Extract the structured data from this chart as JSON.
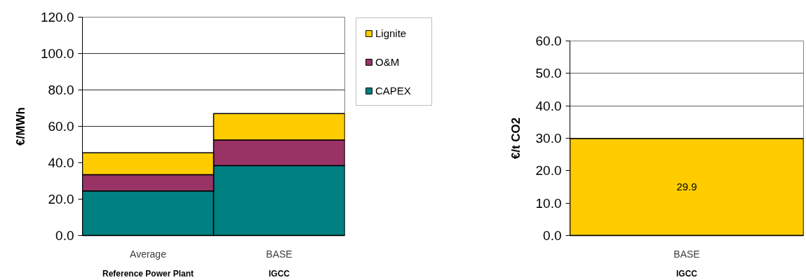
{
  "chart_data": [
    {
      "type": "bar",
      "stacked": true,
      "categories": [
        "Average",
        "BASE"
      ],
      "ylabel": "€/MWh",
      "ylim": [
        0,
        120
      ],
      "yticks": [
        {
          "value": 0,
          "label": "0.0"
        },
        {
          "value": 20,
          "label": "20.0"
        },
        {
          "value": 40,
          "label": "40.0"
        },
        {
          "value": 60,
          "label": "60.0"
        },
        {
          "value": 80,
          "label": "80.0"
        },
        {
          "value": 100,
          "label": "100.0"
        },
        {
          "value": 120,
          "label": "120.0"
        }
      ],
      "grid": "y",
      "legend": "top right",
      "series": [
        {
          "name": "CAPEX",
          "color": "#008080",
          "values": [
            24.5,
            38.5
          ]
        },
        {
          "name": "O&M",
          "color": "#993366",
          "values": [
            9,
            14
          ]
        },
        {
          "name": "Lignite",
          "color": "#ffcc00",
          "values": [
            12,
            14.5
          ]
        }
      ],
      "annotations": [
        "Reference Power Plant",
        "IGCC"
      ]
    },
    {
      "type": "bar",
      "categories": [
        "BASE"
      ],
      "ylabel": "€/t CO2",
      "ylim": [
        0,
        60
      ],
      "yticks": [
        {
          "value": 0,
          "label": "0.0"
        },
        {
          "value": 10,
          "label": "10.0"
        },
        {
          "value": 20,
          "label": "20.0"
        },
        {
          "value": 30,
          "label": "30.0"
        },
        {
          "value": 40,
          "label": "40.0"
        },
        {
          "value": 50,
          "label": "50.0"
        },
        {
          "value": 60,
          "label": "60.0"
        }
      ],
      "grid": "y",
      "values": [
        29.9
      ],
      "color": "#ffcc00",
      "data_labels": true,
      "annotations": [
        "IGCC"
      ]
    }
  ]
}
